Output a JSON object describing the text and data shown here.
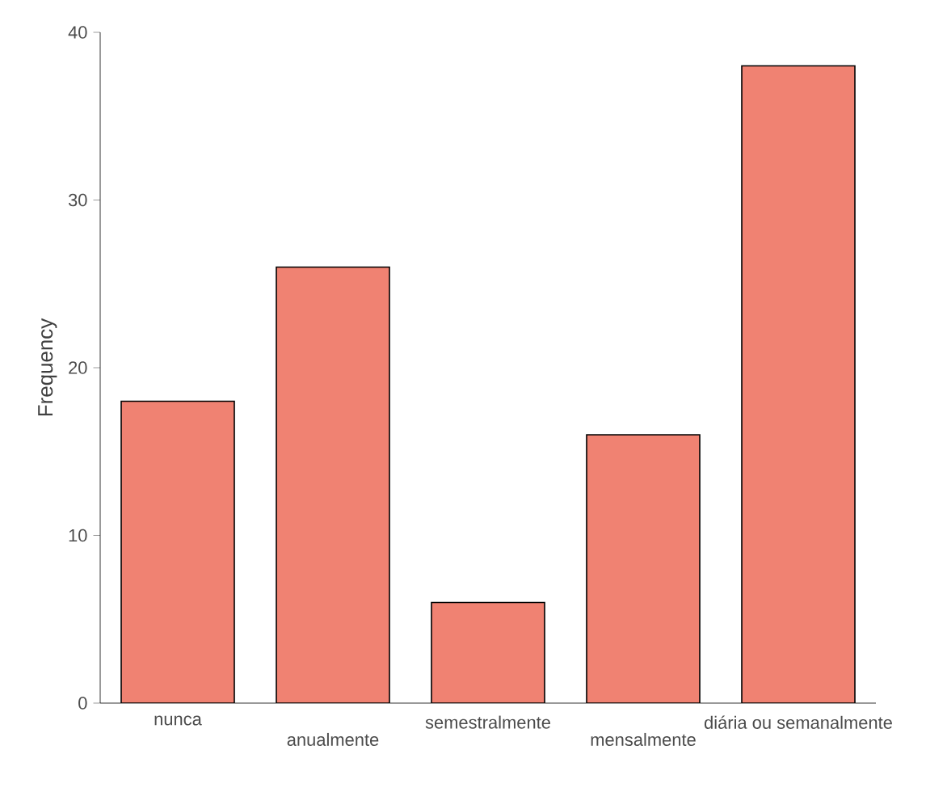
{
  "chart_data": {
    "type": "bar",
    "ylabel": "Frequency",
    "categories": [
      "nunca",
      "anualmente",
      "semestralmente",
      "mensalmente",
      "diária ou semanalmente"
    ],
    "values": [
      18,
      26,
      6,
      16,
      38
    ],
    "color": "#f08272",
    "ylim": [
      0,
      40
    ],
    "yticks": [
      0,
      10,
      20,
      30,
      40
    ],
    "grid": false
  }
}
